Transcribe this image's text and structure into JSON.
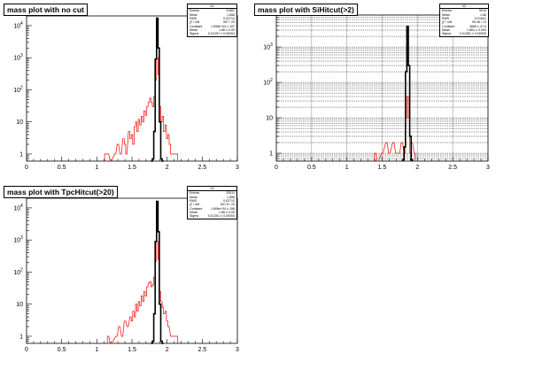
{
  "chart_data": [
    {
      "type": "histogram",
      "title": "mass plot with no cut",
      "xlim": [
        0,
        3
      ],
      "ylim_log": [
        0.6,
        20000
      ],
      "yscale": "log",
      "grid": false,
      "x_ticks": [
        "0",
        "0.5",
        "1",
        "1.5",
        "2",
        "2.5",
        "3"
      ],
      "y_ticks": [
        {
          "value": 1,
          "base": "1",
          "exp": ""
        },
        {
          "value": 10,
          "base": "10",
          "exp": ""
        },
        {
          "value": 100,
          "base": "10",
          "exp": "2"
        },
        {
          "value": 1000,
          "base": "10",
          "exp": "3"
        },
        {
          "value": 10000,
          "base": "10",
          "exp": "4"
        }
      ],
      "stats": {
        "name": "h1",
        "rows": [
          {
            "label": "Entries",
            "value": "21661"
          },
          {
            "label": "Mean",
            "value": "1.856"
          },
          {
            "label": "RMS",
            "value": "0.02714"
          },
          {
            "label": "χ² / ndf",
            "value": "907 / 20"
          },
          {
            "label": "Constant",
            "value": "1.838e+04 ± 157"
          },
          {
            "label": "Mean",
            "value": "1.86 ± 0.00"
          },
          {
            "label": "Sigma",
            "value": "0.01257 ± 0.00004"
          }
        ]
      },
      "series": [
        {
          "name": "",
          "color": "#ff0000",
          "points": [
            [
              1.12,
              1
            ],
            [
              1.16,
              1
            ],
            [
              1.2,
              0.5
            ],
            [
              1.26,
              1
            ],
            [
              1.3,
              2
            ],
            [
              1.34,
              1
            ],
            [
              1.38,
              3
            ],
            [
              1.4,
              2
            ],
            [
              1.42,
              1
            ],
            [
              1.46,
              5
            ],
            [
              1.48,
              3
            ],
            [
              1.5,
              4
            ],
            [
              1.52,
              2
            ],
            [
              1.54,
              7
            ],
            [
              1.56,
              10
            ],
            [
              1.58,
              5
            ],
            [
              1.6,
              12
            ],
            [
              1.62,
              8
            ],
            [
              1.64,
              15
            ],
            [
              1.66,
              10
            ],
            [
              1.68,
              22
            ],
            [
              1.7,
              16
            ],
            [
              1.72,
              30
            ],
            [
              1.74,
              40
            ],
            [
              1.76,
              55
            ],
            [
              1.78,
              40
            ],
            [
              1.8,
              30
            ],
            [
              1.82,
              60
            ],
            [
              1.84,
              200
            ],
            [
              1.86,
              1000
            ],
            [
              1.88,
              300
            ],
            [
              1.9,
              30
            ],
            [
              1.92,
              10
            ],
            [
              1.94,
              15
            ],
            [
              1.96,
              5
            ],
            [
              1.98,
              8
            ],
            [
              2.0,
              3
            ],
            [
              2.02,
              4
            ],
            [
              2.04,
              2
            ],
            [
              2.06,
              1
            ],
            [
              2.1,
              1
            ],
            [
              2.14,
              1
            ]
          ]
        },
        {
          "name": "",
          "color": "#000000",
          "points": [
            [
              1.78,
              0.6
            ],
            [
              1.8,
              0.7
            ],
            [
              1.82,
              5
            ],
            [
              1.84,
              900
            ],
            [
              1.86,
              17000
            ],
            [
              1.88,
              2000
            ],
            [
              1.9,
              10
            ],
            [
              1.92,
              0.7
            ],
            [
              1.94,
              0.6
            ]
          ]
        }
      ]
    },
    {
      "type": "histogram",
      "title": "mass plot with SiHitcut(>2)",
      "xlim": [
        0,
        3
      ],
      "ylim_log": [
        0.6,
        8000
      ],
      "yscale": "log",
      "grid": true,
      "x_ticks": [
        "0",
        "0.5",
        "1",
        "1.5",
        "2",
        "2.5",
        "3"
      ],
      "y_ticks": [
        {
          "value": 1,
          "base": "1",
          "exp": ""
        },
        {
          "value": 10,
          "base": "10",
          "exp": ""
        },
        {
          "value": 100,
          "base": "10",
          "exp": "2"
        },
        {
          "value": 1000,
          "base": "10",
          "exp": "3"
        }
      ],
      "stats": {
        "name": "h2",
        "rows": [
          {
            "label": "Entries",
            "value": "5918"
          },
          {
            "label": "Mean",
            "value": "1.86"
          },
          {
            "label": "RMS",
            "value": "0.01631"
          },
          {
            "label": "χ² / ndf",
            "value": "95.46 / 13"
          },
          {
            "label": "Constant",
            "value": "3666 ± 47.5"
          },
          {
            "label": "Mean",
            "value": "1.861 ± 0.000"
          },
          {
            "label": "Sigma",
            "value": "0.01361 ± 0.00005"
          }
        ]
      },
      "series": [
        {
          "name": "",
          "color": "#ff0000",
          "points": [
            [
              1.4,
              1
            ],
            [
              1.44,
              0.6
            ],
            [
              1.5,
              1
            ],
            [
              1.56,
              2
            ],
            [
              1.6,
              1
            ],
            [
              1.66,
              2
            ],
            [
              1.7,
              1
            ],
            [
              1.74,
              1
            ],
            [
              1.78,
              2
            ],
            [
              1.82,
              1
            ],
            [
              1.84,
              10
            ],
            [
              1.86,
              40
            ],
            [
              1.88,
              10
            ],
            [
              1.9,
              1
            ],
            [
              1.92,
              2
            ],
            [
              1.96,
              1
            ]
          ]
        },
        {
          "name": "",
          "color": "#000000",
          "points": [
            [
              1.8,
              0.65
            ],
            [
              1.82,
              1.5
            ],
            [
              1.84,
              200
            ],
            [
              1.86,
              3800
            ],
            [
              1.88,
              300
            ],
            [
              1.9,
              3
            ],
            [
              1.92,
              0.65
            ]
          ]
        }
      ]
    },
    {
      "type": "histogram",
      "title": "mass plot with TpcHitcut(>20)",
      "xlim": [
        0,
        3
      ],
      "ylim_log": [
        0.6,
        20000
      ],
      "yscale": "log",
      "grid": false,
      "x_ticks": [
        "0",
        "0.5",
        "1",
        "1.5",
        "2",
        "2.5",
        "3"
      ],
      "y_ticks": [
        {
          "value": 1,
          "base": "1",
          "exp": ""
        },
        {
          "value": 10,
          "base": "10",
          "exp": ""
        },
        {
          "value": 100,
          "base": "10",
          "exp": "2"
        },
        {
          "value": 1000,
          "base": "10",
          "exp": "3"
        },
        {
          "value": 10000,
          "base": "10",
          "exp": "4"
        }
      ],
      "stats": {
        "name": "h3",
        "rows": [
          {
            "label": "Entries",
            "value": "20511"
          },
          {
            "label": "Mean",
            "value": "1.856"
          },
          {
            "label": "RMS",
            "value": "0.02712"
          },
          {
            "label": "χ² / ndf",
            "value": "847.6 / 20"
          },
          {
            "label": "Constant",
            "value": "1.806e+04 ± 156"
          },
          {
            "label": "Mean",
            "value": "1.86 ± 0.00"
          },
          {
            "label": "Sigma",
            "value": "0.01251 ± 0.00004"
          }
        ]
      },
      "series": [
        {
          "name": "",
          "color": "#ff0000",
          "points": [
            [
              1.16,
              1
            ],
            [
              1.2,
              0.5
            ],
            [
              1.28,
              1
            ],
            [
              1.32,
              2
            ],
            [
              1.36,
              1
            ],
            [
              1.4,
              3
            ],
            [
              1.44,
              2
            ],
            [
              1.48,
              4
            ],
            [
              1.5,
              3
            ],
            [
              1.52,
              6
            ],
            [
              1.54,
              4
            ],
            [
              1.56,
              10
            ],
            [
              1.58,
              6
            ],
            [
              1.6,
              12
            ],
            [
              1.62,
              9
            ],
            [
              1.64,
              18
            ],
            [
              1.66,
              12
            ],
            [
              1.68,
              25
            ],
            [
              1.7,
              18
            ],
            [
              1.72,
              35
            ],
            [
              1.74,
              45
            ],
            [
              1.76,
              50
            ],
            [
              1.78,
              35
            ],
            [
              1.8,
              40
            ],
            [
              1.82,
              70
            ],
            [
              1.84,
              220
            ],
            [
              1.86,
              900
            ],
            [
              1.88,
              250
            ],
            [
              1.9,
              25
            ],
            [
              1.92,
              12
            ],
            [
              1.94,
              8
            ],
            [
              1.96,
              5
            ],
            [
              1.98,
              6
            ],
            [
              2.0,
              3
            ],
            [
              2.02,
              2
            ],
            [
              2.06,
              1
            ],
            [
              2.1,
              1
            ],
            [
              2.14,
              1
            ]
          ]
        },
        {
          "name": "",
          "color": "#000000",
          "points": [
            [
              1.78,
              0.6
            ],
            [
              1.8,
              0.7
            ],
            [
              1.82,
              5
            ],
            [
              1.84,
              900
            ],
            [
              1.86,
              16000
            ],
            [
              1.88,
              1800
            ],
            [
              1.9,
              10
            ],
            [
              1.92,
              0.7
            ],
            [
              1.94,
              0.6
            ]
          ]
        }
      ]
    }
  ]
}
